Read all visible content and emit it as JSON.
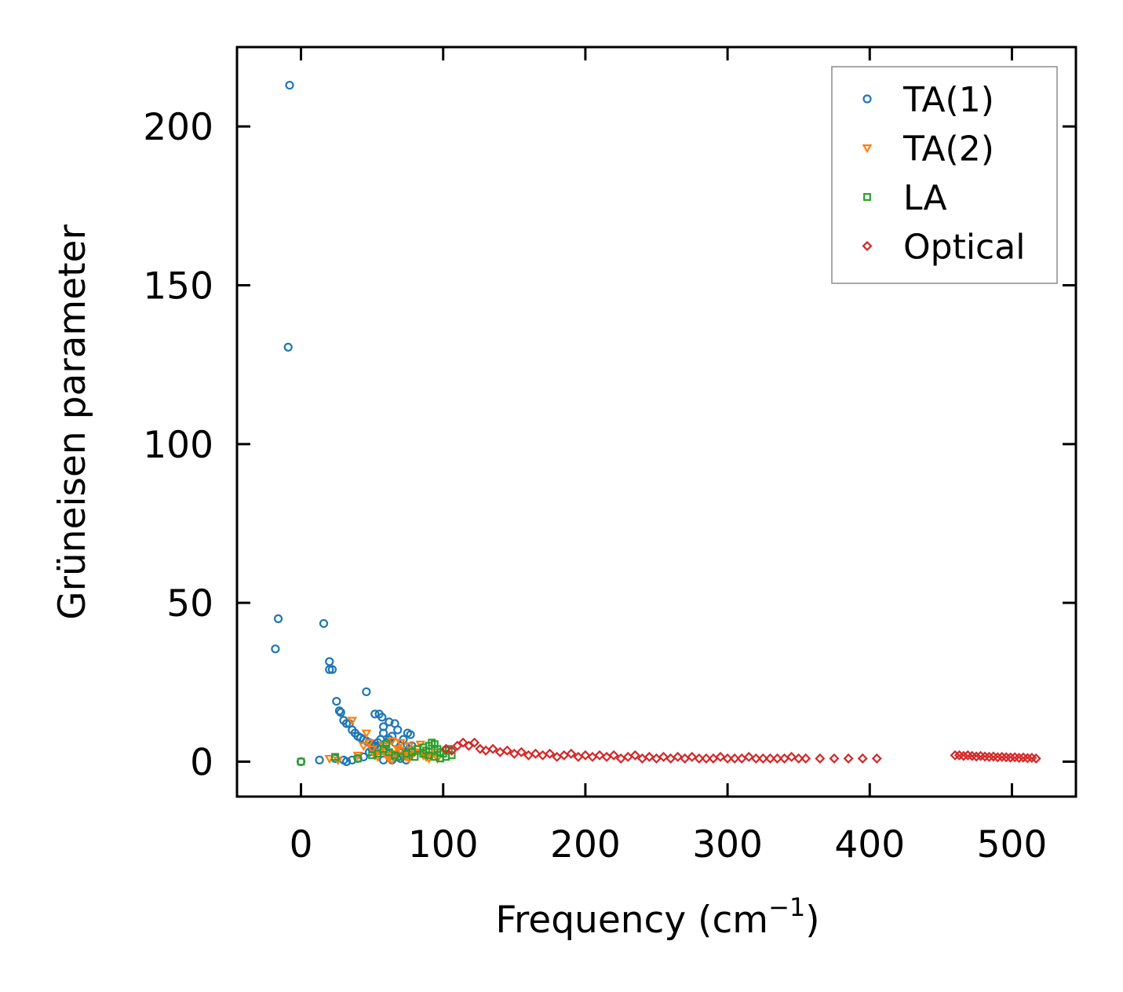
{
  "chart_data": {
    "type": "scatter",
    "title": "",
    "xlabel": "Frequency (cm",
    "xlabel_sup": "−1",
    "xlabel_close": ")",
    "ylabel": "Grüneisen parameter",
    "xlim": [
      -45,
      545
    ],
    "ylim": [
      -11,
      225
    ],
    "xticks": [
      0,
      100,
      200,
      300,
      400,
      500
    ],
    "yticks": [
      0,
      50,
      100,
      150,
      200
    ],
    "xtick_labels": [
      "0",
      "100",
      "200",
      "300",
      "400",
      "500"
    ],
    "ytick_labels": [
      "0",
      "50",
      "100",
      "150",
      "200"
    ],
    "grid": false,
    "legend_position": "top-right",
    "series": [
      {
        "name": "TA(1)",
        "marker": "circle",
        "color": "#1f77b4",
        "points": [
          [
            -8,
            213
          ],
          [
            -9,
            130.5
          ],
          [
            -16,
            45
          ],
          [
            -18,
            35.5
          ],
          [
            16,
            43.5
          ],
          [
            20,
            31.5
          ],
          [
            20,
            29
          ],
          [
            22,
            29
          ],
          [
            25,
            19
          ],
          [
            27,
            16
          ],
          [
            28,
            15.5
          ],
          [
            30,
            13
          ],
          [
            32,
            12
          ],
          [
            34,
            12
          ],
          [
            46,
            22
          ],
          [
            52,
            15
          ],
          [
            55,
            15
          ],
          [
            57,
            14
          ],
          [
            58,
            11
          ],
          [
            62,
            12.5
          ],
          [
            66,
            12
          ],
          [
            68,
            10
          ],
          [
            75,
            9
          ],
          [
            77,
            8.5
          ],
          [
            36,
            10
          ],
          [
            38,
            9
          ],
          [
            40,
            8
          ],
          [
            42,
            7.5
          ],
          [
            44,
            7
          ],
          [
            46,
            6.5
          ],
          [
            48,
            6
          ],
          [
            50,
            5.5
          ],
          [
            52,
            5
          ],
          [
            54,
            4.5
          ],
          [
            56,
            4
          ],
          [
            58,
            3.5
          ],
          [
            60,
            3
          ],
          [
            62,
            2.5
          ],
          [
            64,
            2
          ],
          [
            66,
            1.5
          ],
          [
            68,
            1.5
          ],
          [
            70,
            1
          ],
          [
            72,
            2
          ],
          [
            74,
            3
          ],
          [
            76,
            4
          ],
          [
            78,
            5
          ],
          [
            60,
            6
          ],
          [
            62,
            7
          ],
          [
            64,
            8
          ],
          [
            58,
            9
          ],
          [
            56,
            7
          ],
          [
            54,
            6
          ],
          [
            50,
            4
          ],
          [
            48,
            3
          ],
          [
            66,
            6
          ],
          [
            70,
            5
          ],
          [
            72,
            7
          ],
          [
            0,
            0
          ],
          [
            13,
            0.5
          ],
          [
            24,
            1
          ],
          [
            30,
            0.5
          ],
          [
            32,
            0
          ],
          [
            36,
            0.5
          ],
          [
            40,
            1
          ],
          [
            44,
            1.5
          ],
          [
            58,
            0.5
          ],
          [
            64,
            0.5
          ],
          [
            74,
            0.5
          ]
        ]
      },
      {
        "name": "TA(2)",
        "marker": "triangle-down",
        "color": "#ff7f0e",
        "points": [
          [
            20,
            1
          ],
          [
            26,
            0.5
          ],
          [
            36,
            13
          ],
          [
            40,
            2
          ],
          [
            44,
            5
          ],
          [
            46,
            9
          ],
          [
            48,
            6
          ],
          [
            50,
            4
          ],
          [
            52,
            2
          ],
          [
            54,
            1.5
          ],
          [
            56,
            3
          ],
          [
            58,
            5
          ],
          [
            60,
            2
          ],
          [
            62,
            1
          ],
          [
            64,
            0.5
          ],
          [
            66,
            2.5
          ],
          [
            68,
            4
          ],
          [
            70,
            3.5
          ],
          [
            72,
            2
          ],
          [
            74,
            1.5
          ],
          [
            76,
            1
          ],
          [
            78,
            2
          ],
          [
            80,
            3
          ],
          [
            82,
            4
          ],
          [
            84,
            3
          ],
          [
            86,
            2
          ],
          [
            88,
            1.5
          ],
          [
            90,
            1
          ],
          [
            92,
            2
          ],
          [
            94,
            3
          ],
          [
            96,
            1
          ],
          [
            84,
            5.5
          ],
          [
            76,
            5
          ],
          [
            70,
            6
          ],
          [
            64,
            6.5
          ]
        ]
      },
      {
        "name": "LA",
        "marker": "square",
        "color": "#2ca02c",
        "points": [
          [
            0,
            0
          ],
          [
            24,
            1.5
          ],
          [
            40,
            1
          ],
          [
            50,
            2
          ],
          [
            54,
            2.5
          ],
          [
            58,
            4
          ],
          [
            60,
            5.5
          ],
          [
            62,
            3
          ],
          [
            66,
            2
          ],
          [
            70,
            1.5
          ],
          [
            74,
            2.5
          ],
          [
            78,
            3
          ],
          [
            82,
            4
          ],
          [
            86,
            4.5
          ],
          [
            88,
            3.5
          ],
          [
            90,
            5
          ],
          [
            92,
            6
          ],
          [
            94,
            5.5
          ],
          [
            96,
            4
          ],
          [
            98,
            3
          ],
          [
            100,
            2.5
          ],
          [
            102,
            3.5
          ],
          [
            104,
            4
          ],
          [
            106,
            2
          ],
          [
            90,
            2
          ],
          [
            94,
            1.5
          ],
          [
            98,
            1
          ],
          [
            102,
            1.5
          ],
          [
            86,
            2.5
          ],
          [
            80,
            1.5
          ]
        ]
      },
      {
        "name": "Optical",
        "marker": "diamond",
        "color": "#d62728",
        "points": [
          [
            102,
            4
          ],
          [
            106,
            3.5
          ],
          [
            110,
            5
          ],
          [
            114,
            6
          ],
          [
            118,
            5
          ],
          [
            122,
            6
          ],
          [
            126,
            4
          ],
          [
            130,
            3.5
          ],
          [
            135,
            4
          ],
          [
            140,
            3
          ],
          [
            145,
            3.5
          ],
          [
            150,
            2.5
          ],
          [
            155,
            3
          ],
          [
            160,
            2
          ],
          [
            165,
            2.5
          ],
          [
            170,
            2
          ],
          [
            175,
            2.5
          ],
          [
            180,
            1.5
          ],
          [
            185,
            2
          ],
          [
            190,
            2.5
          ],
          [
            195,
            1.5
          ],
          [
            200,
            2
          ],
          [
            205,
            1.5
          ],
          [
            210,
            2
          ],
          [
            215,
            1.5
          ],
          [
            220,
            2
          ],
          [
            225,
            1
          ],
          [
            230,
            1.5
          ],
          [
            235,
            2
          ],
          [
            240,
            1
          ],
          [
            245,
            1.5
          ],
          [
            250,
            1
          ],
          [
            255,
            1.5
          ],
          [
            260,
            1
          ],
          [
            265,
            1.5
          ],
          [
            270,
            1
          ],
          [
            275,
            1.5
          ],
          [
            280,
            1
          ],
          [
            285,
            1
          ],
          [
            290,
            1
          ],
          [
            295,
            1.5
          ],
          [
            300,
            1
          ],
          [
            305,
            1
          ],
          [
            310,
            1
          ],
          [
            315,
            1.5
          ],
          [
            320,
            1
          ],
          [
            325,
            1
          ],
          [
            330,
            1
          ],
          [
            335,
            1
          ],
          [
            340,
            1
          ],
          [
            345,
            1.5
          ],
          [
            350,
            1
          ],
          [
            355,
            1
          ],
          [
            365,
            1
          ],
          [
            375,
            1
          ],
          [
            385,
            1
          ],
          [
            395,
            1
          ],
          [
            405,
            1
          ],
          [
            460,
            2
          ],
          [
            463,
            2
          ],
          [
            466,
            1.8
          ],
          [
            469,
            2
          ],
          [
            472,
            1.8
          ],
          [
            475,
            1.6
          ],
          [
            478,
            1.8
          ],
          [
            481,
            1.6
          ],
          [
            484,
            1.5
          ],
          [
            487,
            1.6
          ],
          [
            490,
            1.4
          ],
          [
            493,
            1.5
          ],
          [
            496,
            1.4
          ],
          [
            499,
            1.3
          ],
          [
            502,
            1.4
          ],
          [
            505,
            1.2
          ],
          [
            508,
            1.3
          ],
          [
            511,
            1.1
          ],
          [
            514,
            1.2
          ],
          [
            517,
            1
          ]
        ]
      }
    ]
  }
}
